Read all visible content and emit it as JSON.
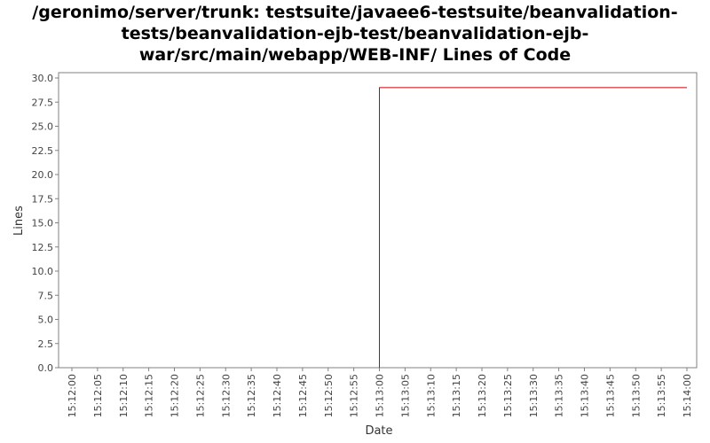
{
  "chart_data": {
    "type": "line",
    "title_lines": [
      "/geronimo/server/trunk: testsuite/javaee6-testsuite/beanvalidation-",
      "tests/beanvalidation-ejb-test/beanvalidation-ejb-",
      "war/src/main/webapp/WEB-INF/ Lines of Code"
    ],
    "xlabel": "Date",
    "ylabel": "Lines",
    "ylim": [
      0,
      30
    ],
    "y_ticks": [
      "0.0",
      "2.5",
      "5.0",
      "7.5",
      "10.0",
      "12.5",
      "15.0",
      "17.5",
      "20.0",
      "22.5",
      "25.0",
      "27.5",
      "30.0"
    ],
    "x_ticks": [
      "15:12:00",
      "15:12:05",
      "15:12:10",
      "15:12:15",
      "15:12:20",
      "15:12:25",
      "15:12:30",
      "15:12:35",
      "15:12:40",
      "15:12:45",
      "15:12:50",
      "15:12:55",
      "15:13:00",
      "15:13:05",
      "15:13:10",
      "15:13:15",
      "15:13:20",
      "15:13:25",
      "15:13:30",
      "15:13:35",
      "15:13:40",
      "15:13:45",
      "15:13:50",
      "15:13:55",
      "15:14:00"
    ],
    "series": [
      {
        "color": "#cc0000",
        "points": [
          {
            "x": "15:13:00",
            "y": 0
          },
          {
            "x": "15:13:00",
            "y": 29
          },
          {
            "x": "15:14:00",
            "y": 29
          }
        ]
      }
    ],
    "grid": false,
    "legend": "none"
  }
}
